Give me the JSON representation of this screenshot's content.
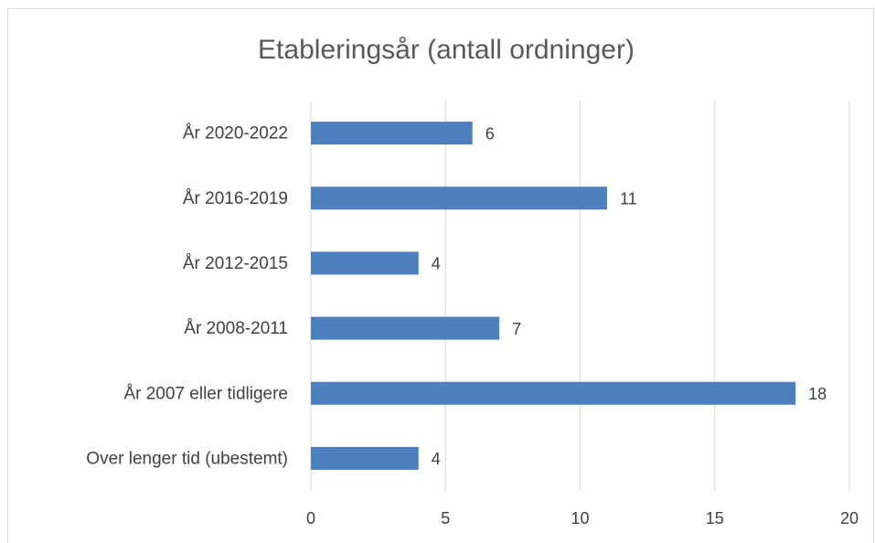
{
  "chart_data": {
    "type": "bar",
    "orientation": "horizontal",
    "title": "Etableringsår (antall ordninger)",
    "categories": [
      "År 2020-2022",
      "År 2016-2019",
      "År 2012-2015",
      "År 2008-2011",
      "År 2007 eller tidligere",
      "Over lenger tid (ubestemt)"
    ],
    "values": [
      6,
      11,
      4,
      7,
      18,
      4
    ],
    "color": "#4e7fbf",
    "xlim": [
      0,
      20
    ],
    "xticks": [
      0,
      5,
      10,
      15,
      20
    ],
    "grid": true
  }
}
